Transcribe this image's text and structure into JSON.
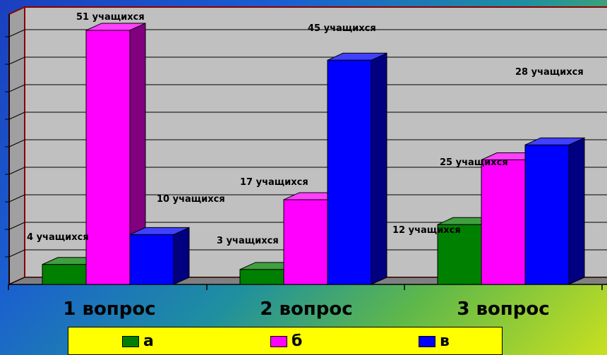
{
  "colors": {
    "a": "#008000",
    "b": "#ff00ff",
    "c": "#0000ff",
    "plot_bg": "#c0c0c0",
    "frame": "#8b0000"
  },
  "chart_data": {
    "type": "bar",
    "categories": [
      "1 вопрос",
      "2 вопрос",
      "3 вопрос"
    ],
    "series": [
      {
        "name": "а",
        "values": [
          4,
          3,
          12
        ],
        "labels": [
          "4 учащихся",
          "3 учащихся",
          "12 учащихся"
        ]
      },
      {
        "name": "б",
        "values": [
          51,
          17,
          25
        ],
        "labels": [
          "51 учащихся",
          "17 учащихся",
          "25 учащихся"
        ]
      },
      {
        "name": "в",
        "values": [
          10,
          45,
          28
        ],
        "labels": [
          "10 учащихся",
          "45  учащихся",
          "28 учащихся"
        ]
      }
    ],
    "legend_position": "bottom",
    "grid": true
  }
}
